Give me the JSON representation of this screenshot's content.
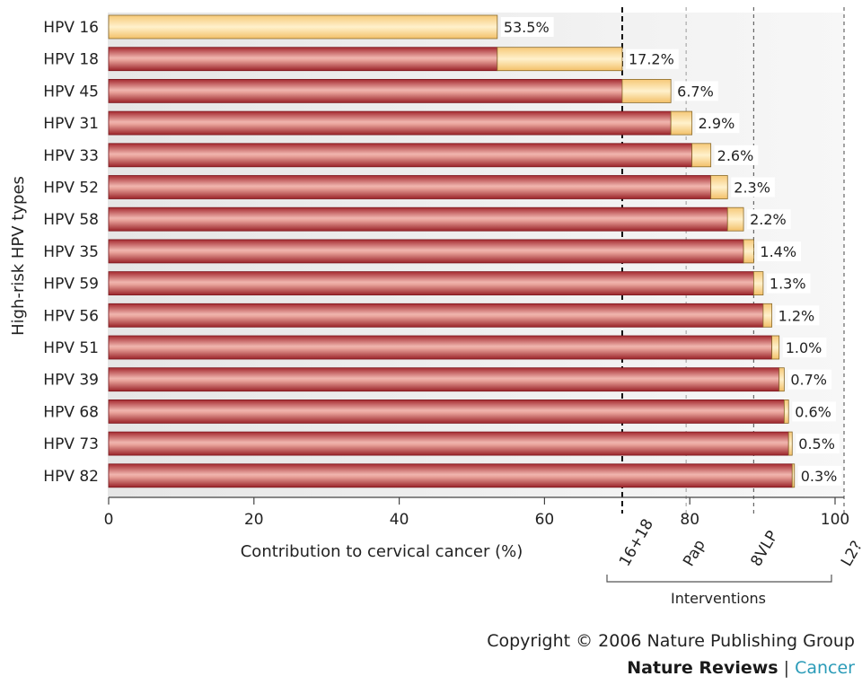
{
  "chart_data": {
    "type": "bar",
    "orientation": "horizontal",
    "stacked": true,
    "ylabel": "High-risk HPV types",
    "xlabel": "Contribution to cervical cancer (%)",
    "xlim": [
      0,
      100
    ],
    "xticks": [
      0,
      20,
      40,
      60,
      80,
      100
    ],
    "categories": [
      "HPV 16",
      "HPV 18",
      "HPV 45",
      "HPV 31",
      "HPV 33",
      "HPV 52",
      "HPV 58",
      "HPV 35",
      "HPV 59",
      "HPV 56",
      "HPV 51",
      "HPV 39",
      "HPV 68",
      "HPV 73",
      "HPV 82"
    ],
    "values": [
      53.5,
      17.2,
      6.7,
      2.9,
      2.6,
      2.3,
      2.2,
      1.4,
      1.3,
      1.2,
      1.0,
      0.7,
      0.6,
      0.5,
      0.3
    ],
    "value_labels": [
      "53.5%",
      "17.2%",
      "6.7%",
      "2.9%",
      "2.6%",
      "2.3%",
      "2.2%",
      "1.4%",
      "1.3%",
      "1.2%",
      "1.0%",
      "0.7%",
      "0.6%",
      "0.5%",
      "0.3%"
    ],
    "series": [
      {
        "values": [
          0,
          53.5,
          70.7,
          77.4,
          80.3,
          82.9,
          85.2,
          87.4,
          88.8,
          90.1,
          91.3,
          92.3,
          93.0,
          93.6,
          94.1
        ]
      },
      {
        "values": [
          53.5,
          17.2,
          6.7,
          2.9,
          2.6,
          2.3,
          2.2,
          1.4,
          1.3,
          1.2,
          1.0,
          0.7,
          0.6,
          0.5,
          0.3
        ]
      }
    ],
    "interventions": {
      "label": "Interventions",
      "lines": [
        {
          "label": "16+18",
          "x": 70.7,
          "style": "dashed-bold"
        },
        {
          "label": "Pap",
          "x": 79.5,
          "style": "dashed-light"
        },
        {
          "label": "8VLP",
          "x": 88.8,
          "style": "dashed"
        },
        {
          "label": "L2?",
          "x": 100,
          "style": "dashed"
        }
      ]
    },
    "colors": {
      "cumulative": "#b0343a",
      "increment": "#fbd98f",
      "plot_background": "#ececec"
    },
    "grid": false
  },
  "footer": {
    "copyright": "Copyright © 2006 Nature Publishing Group",
    "journal": "Nature Reviews",
    "separator": "|",
    "section": "Cancer"
  }
}
